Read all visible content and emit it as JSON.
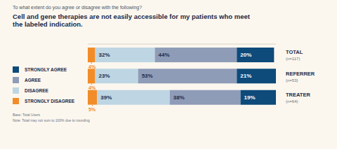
{
  "chart_data": {
    "type": "bar",
    "subtitle": "To what extent do you agree or disagree with the following?",
    "title": "Cell and gene therapies are not easily accessible for my patients who meet the labeled indication.",
    "categories": [
      "TOTAL",
      "REFERRER",
      "TREATER"
    ],
    "category_notes": [
      "(n=117)",
      "(n=53)",
      "(n=64)"
    ],
    "series": [
      {
        "name": "STRONGLY DISAGREE",
        "color": "#f28c28",
        "values": [
          4,
          4,
          5
        ],
        "value_labels": [
          "4%",
          "4%",
          "5%"
        ]
      },
      {
        "name": "DISAGREE",
        "color": "#bed6e3",
        "values": [
          32,
          23,
          39
        ],
        "value_labels": [
          "32%",
          "23%",
          "39%"
        ]
      },
      {
        "name": "AGREE",
        "color": "#8f9cb8",
        "values": [
          44,
          53,
          38
        ],
        "value_labels": [
          "44%",
          "53%",
          "38%"
        ]
      },
      {
        "name": "STRONGLY AGREE",
        "color": "#0e4a7a",
        "values": [
          20,
          21,
          19
        ],
        "value_labels": [
          "20%",
          "21%",
          "19%"
        ]
      }
    ],
    "xlim": [
      0,
      101
    ],
    "orientation": "horizontal",
    "stacked": true,
    "data_labels": true,
    "tick_labels": "y",
    "legend": "left",
    "footnotes": [
      "Base: Total Users",
      "Note: Total may not sum to 100% due to rounding"
    ]
  }
}
